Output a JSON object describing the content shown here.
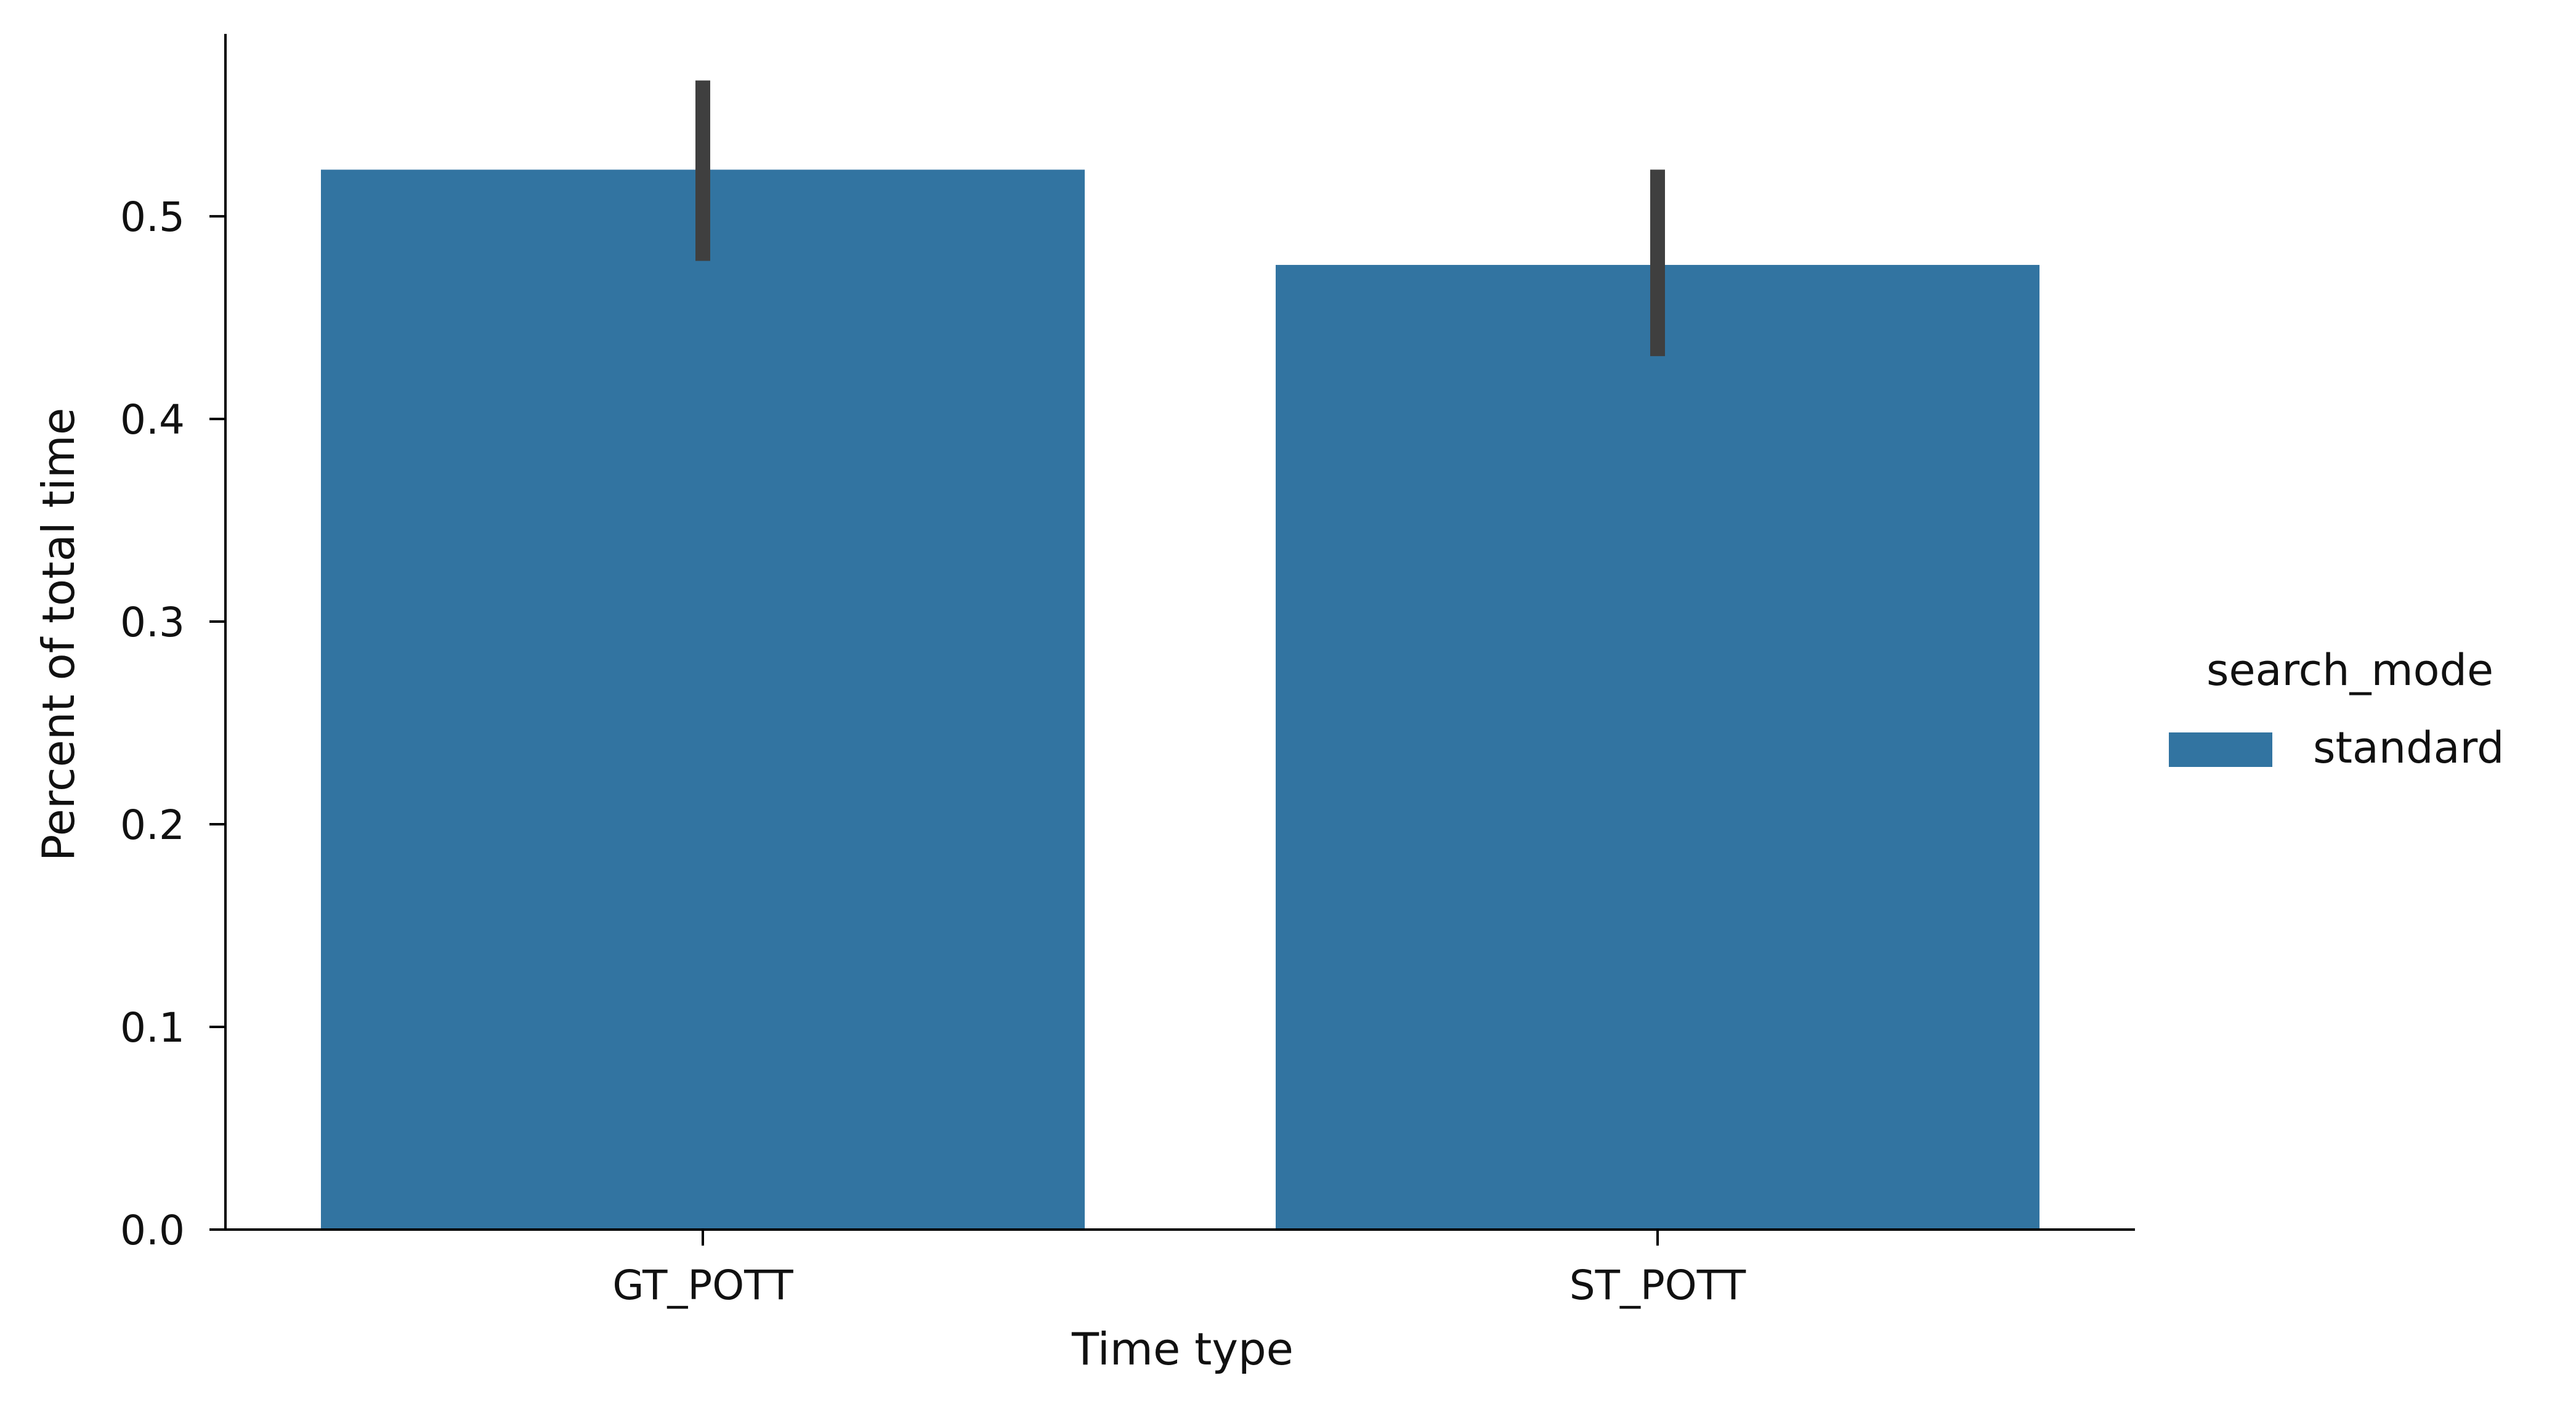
{
  "chart_data": {
    "type": "bar",
    "categories": [
      "GT_POTT",
      "ST_POTT"
    ],
    "series": [
      {
        "name": "standard",
        "values": [
          0.523,
          0.476
        ],
        "error_low": [
          0.478,
          0.431
        ],
        "error_high": [
          0.567,
          0.523
        ],
        "color": "#3274a1"
      }
    ],
    "xlabel": "Time type",
    "ylabel": "Percent of total time",
    "ylim": [
      0,
      0.59
    ],
    "yticks": [
      "0.0",
      "0.1",
      "0.2",
      "0.3",
      "0.4",
      "0.5"
    ],
    "grid": false,
    "legend": {
      "title": "search_mode",
      "placement": "right",
      "entries": [
        "standard"
      ]
    },
    "errorbar_color": "#3f3f3f"
  }
}
